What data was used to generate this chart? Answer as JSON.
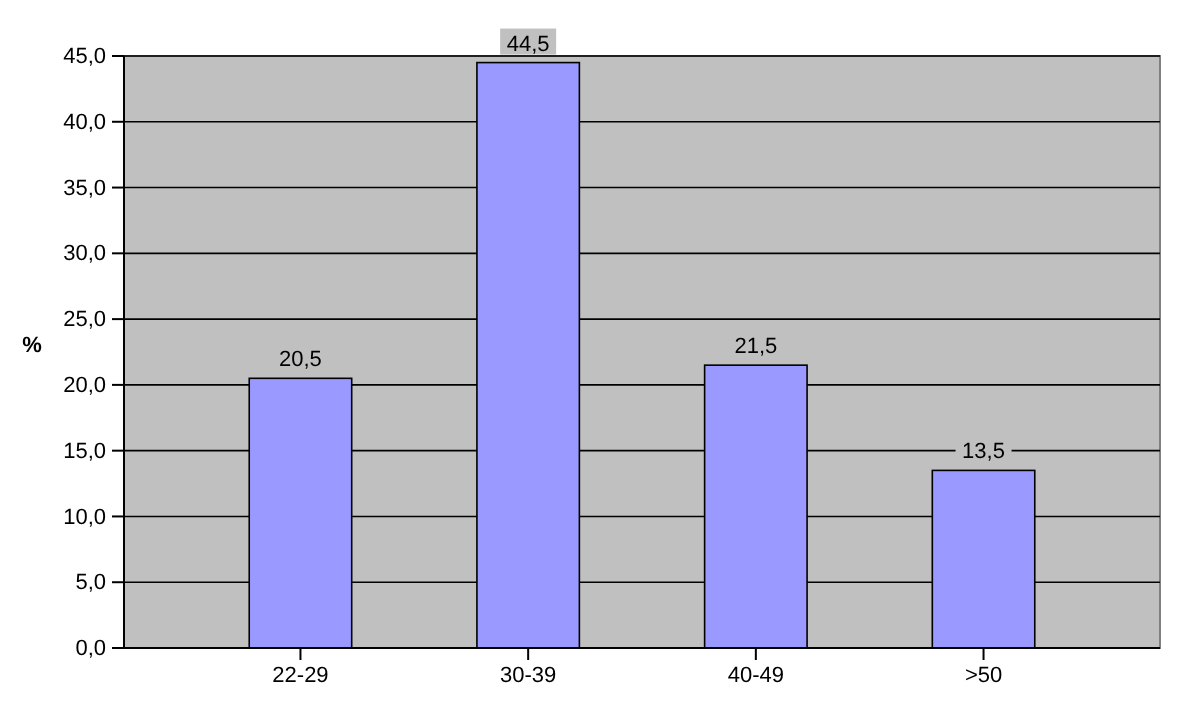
{
  "chart_data": {
    "type": "bar",
    "ylabel": "%",
    "categories": [
      "22-29",
      "30-39",
      "40-49",
      ">50"
    ],
    "values": [
      20.5,
      44.5,
      21.5,
      13.5
    ],
    "value_labels": [
      "20,5",
      "44,5",
      "21,5",
      "13,5"
    ],
    "color": "#9999ff",
    "ylim": [
      0,
      45
    ],
    "yticks": [
      {
        "value": 0,
        "label": "0,0"
      },
      {
        "value": 5,
        "label": "5,0"
      },
      {
        "value": 10,
        "label": "10,0"
      },
      {
        "value": 15,
        "label": "15,0"
      },
      {
        "value": 20,
        "label": "20,0"
      },
      {
        "value": 25,
        "label": "25,0"
      },
      {
        "value": 30,
        "label": "30,0"
      },
      {
        "value": 35,
        "label": "35,0"
      },
      {
        "value": 40,
        "label": "40,0"
      },
      {
        "value": 45,
        "label": "45,0"
      }
    ],
    "grid": "y"
  }
}
